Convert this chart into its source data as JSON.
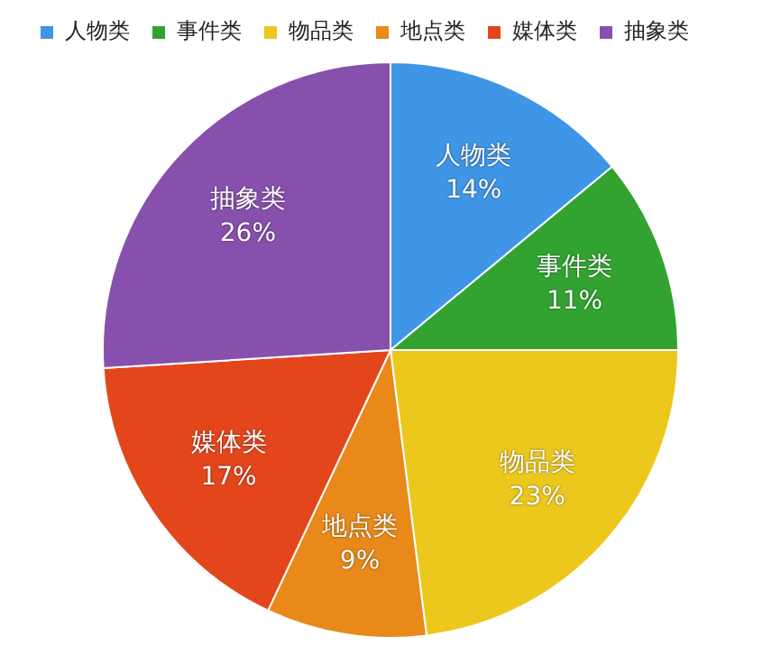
{
  "chart_data": {
    "type": "pie",
    "categories": [
      "人物类",
      "事件类",
      "物品类",
      "地点类",
      "媒体类",
      "抽象类"
    ],
    "values": [
      14,
      11,
      23,
      9,
      17,
      26
    ],
    "value_labels": [
      "14%",
      "11%",
      "23%",
      "9%",
      "17%",
      "26%"
    ],
    "colors": [
      "#3f95e6",
      "#32a331",
      "#ecc81c",
      "#e8891a",
      "#e4461b",
      "#8750ad"
    ],
    "legend": "top"
  }
}
